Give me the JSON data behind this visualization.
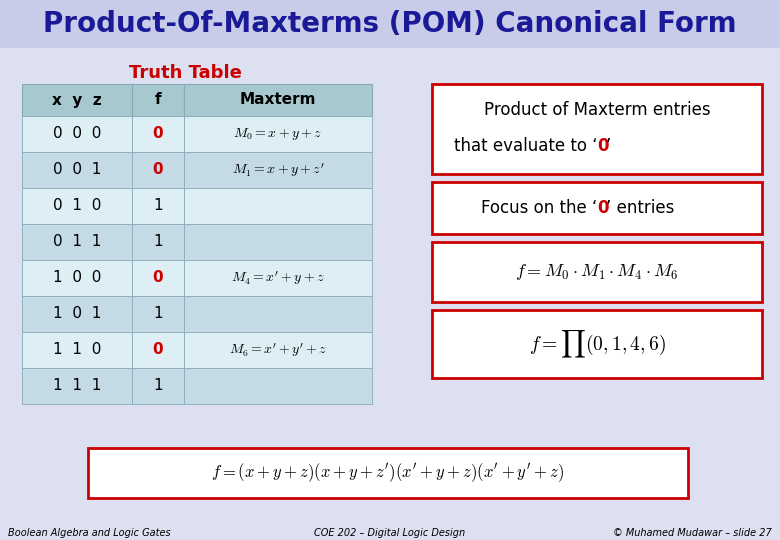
{
  "title": "Product-Of-Maxterms (POM) Canonical Form",
  "title_bg": "#c8cce8",
  "slide_bg": "#dce0f0",
  "subtitle": "Truth Table",
  "subtitle_color": "#cc0000",
  "table_header_bg": "#a8c8d0",
  "table_row_bg_even": "#ddeef4",
  "table_row_bg_odd": "#c4dae4",
  "box_border_color": "#cc0000",
  "box_bg": "#ffffff",
  "highlight_0_color": "#cc0000",
  "text_color": "#000000",
  "title_color": "#1a1a99",
  "footer_left": "Boolean Algebra and Logic Gates",
  "footer_center": "COE 202 – Digital Logic Design",
  "footer_right": "© Muhamed Mudawar – slide 27",
  "row_f_values": [
    "0",
    "0",
    "1",
    "1",
    "0",
    "1",
    "0",
    "1"
  ],
  "row_xyz": [
    "0  0  0",
    "0  0  1",
    "0  1  0",
    "0  1  1",
    "1  0  0",
    "1  0  1",
    "1  1  0",
    "1  1  1"
  ],
  "row_maxterms": [
    "$M_0 = x + y + z$",
    "$M_1 = x + y + z'$",
    "",
    "",
    "$M_4 = x' + y + z$",
    "",
    "$M_6 = x' + y' + z$",
    ""
  ]
}
